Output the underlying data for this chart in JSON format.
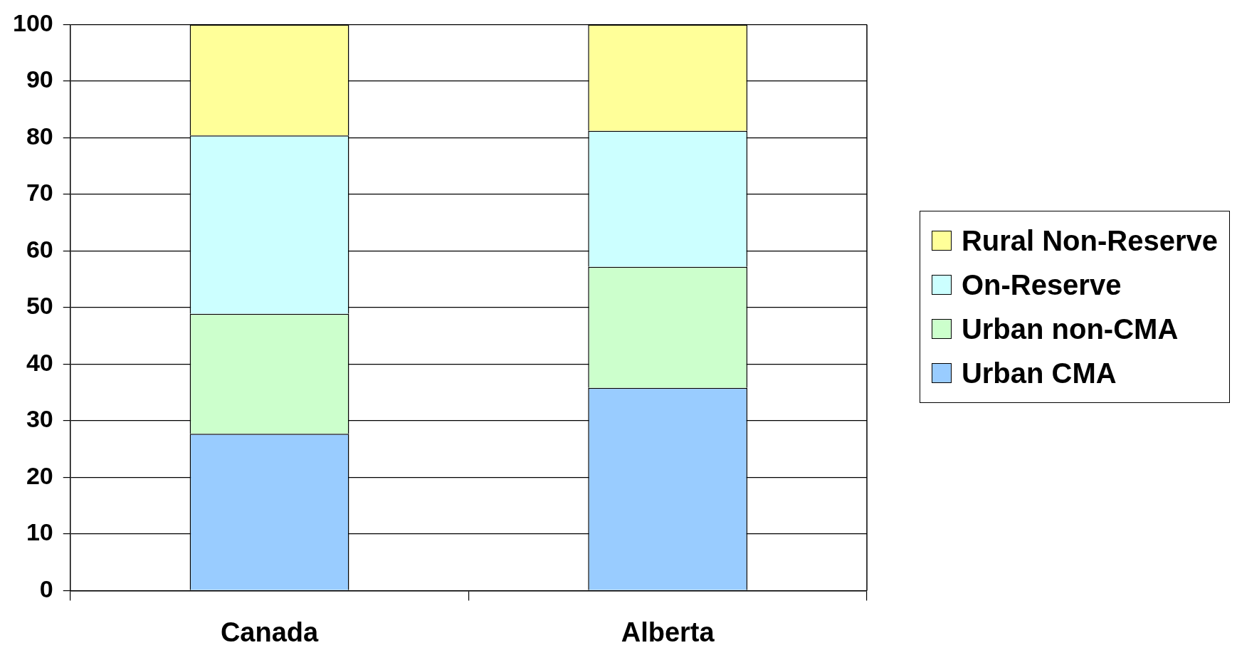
{
  "chart_data": {
    "type": "bar",
    "stacked": true,
    "categories": [
      "Canada",
      "Alberta"
    ],
    "series": [
      {
        "name": "Urban CMA",
        "color": "#99ccff",
        "values": [
          27.7,
          35.8
        ]
      },
      {
        "name": "Urban non-CMA",
        "color": "#ccffcc",
        "values": [
          21.2,
          21.4
        ]
      },
      {
        "name": "On-Reserve",
        "color": "#ccffff",
        "values": [
          31.5,
          24.0
        ]
      },
      {
        "name": "Rural Non-Reserve",
        "color": "#ffff99",
        "values": [
          19.6,
          18.8
        ]
      }
    ],
    "ylim": [
      0,
      100
    ],
    "yticks": [
      0,
      10,
      20,
      30,
      40,
      50,
      60,
      70,
      80,
      90,
      100
    ],
    "grid": "y",
    "legend": "right"
  }
}
